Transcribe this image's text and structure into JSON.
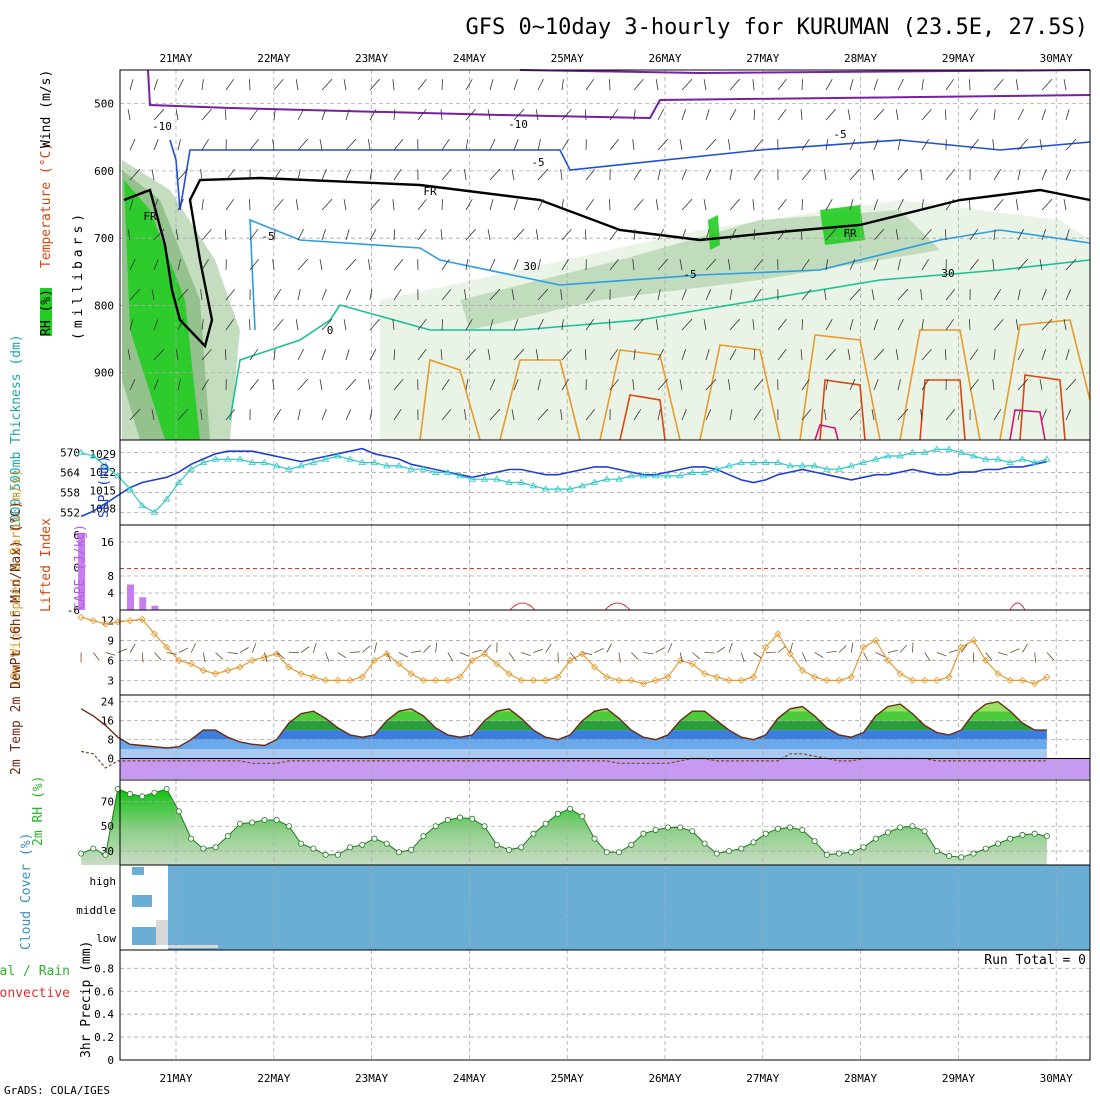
{
  "title": "GFS 0~10day 3-hourly for KURUMAN (23.5E, 27.5S)",
  "credit": "GrADS: COLA/IGES",
  "dates": [
    "21MAY",
    "22MAY",
    "23MAY",
    "24MAY",
    "25MAY",
    "26MAY",
    "27MAY",
    "28MAY",
    "29MAY",
    "30MAY"
  ],
  "colors": {
    "rh_light": "#e7f3e4",
    "rh_mid": "#bcd9b7",
    "rh_dark": "#8fbe88",
    "rh_green": "#22cc22",
    "temp_cold": "#7a1fa2",
    "temp_blue": "#1f4fd6",
    "temp_light_blue": "#2a9de6",
    "temp_teal": "#18c294",
    "temp_orange": "#e89a2a",
    "temp_red": "#d9460f",
    "temp_magenta": "#d4147a",
    "slp": "#1f3fd0",
    "thickness": "#2fc6c6",
    "cape": "#c77ff0",
    "wind": "#e59a2c",
    "t2m_line": "#6b2a13",
    "cloud": "#6aaed6",
    "rh2m": "#2bb52b"
  },
  "chart_data": [
    {
      "type": "heatmap",
      "panel": "upper-air",
      "ylabel_parts": [
        "RH (%)",
        "Temperature (°C)",
        "Wind (m/s)"
      ],
      "yaxis_title": "(millibars)",
      "yticks": [
        500,
        600,
        700,
        800,
        900
      ],
      "ylim": [
        1000,
        450
      ],
      "contour_labels": [
        "-10",
        "-10",
        "-5",
        "-5",
        "-5",
        "-5",
        "0",
        "FR",
        "FR",
        "FR",
        "30",
        "30"
      ]
    },
    {
      "type": "line",
      "panel": "slp-thickness",
      "ylabel_left": "1000-500mb Thickness (dm)",
      "ylabel_right": "SLP (mb)",
      "yticks_left": [
        552,
        558,
        564,
        570
      ],
      "yticks_right": [
        1008,
        1015,
        1022,
        1029
      ],
      "x": [
        0,
        3,
        6,
        9,
        12,
        15,
        18,
        21,
        24,
        27,
        30,
        33,
        36,
        39,
        42,
        45,
        48,
        51,
        54,
        57,
        60,
        63,
        66,
        69,
        72,
        75,
        78,
        81,
        84,
        87,
        90,
        93,
        96,
        99,
        102,
        105,
        108,
        111,
        114,
        117,
        120,
        123,
        126,
        129,
        132,
        135,
        138,
        141,
        144,
        147,
        150,
        153,
        156,
        159,
        162,
        165,
        168,
        171,
        174,
        177,
        180,
        183,
        186,
        189,
        192,
        195,
        198,
        201,
        204,
        207,
        210,
        213,
        216,
        219,
        222,
        225,
        228,
        231,
        234,
        237
      ],
      "series": [
        {
          "name": "SLP (mb)",
          "values": [
            1005,
            1007,
            1010,
            1013,
            1016,
            1018,
            1019,
            1020,
            1022,
            1025,
            1027,
            1029,
            1030,
            1030,
            1030,
            1029,
            1028,
            1027,
            1026,
            1027,
            1028,
            1029,
            1030,
            1031,
            1029,
            1028,
            1027,
            1025,
            1024,
            1023,
            1022,
            1021,
            1020,
            1021,
            1022,
            1023,
            1023,
            1022,
            1021,
            1021,
            1022,
            1023,
            1024,
            1024,
            1023,
            1022,
            1021,
            1021,
            1022,
            1023,
            1024,
            1024,
            1023,
            1021,
            1019,
            1018,
            1019,
            1021,
            1022,
            1023,
            1022,
            1021,
            1020,
            1019,
            1020,
            1021,
            1021,
            1022,
            1023,
            1022,
            1021,
            1021,
            1022,
            1022,
            1023,
            1023,
            1024,
            1024,
            1025,
            1026
          ]
        },
        {
          "name": "1000-500mb Thickness (dm)",
          "values": [
            570,
            569,
            566,
            563,
            559,
            554,
            552,
            556,
            561,
            565,
            567,
            568,
            568,
            568,
            567,
            567,
            566,
            565,
            566,
            567,
            568,
            569,
            568,
            567,
            567,
            566,
            566,
            565,
            565,
            564,
            564,
            563,
            562,
            562,
            562,
            561,
            561,
            560,
            559,
            559,
            559,
            560,
            561,
            562,
            562,
            563,
            563,
            563,
            563,
            563,
            564,
            564,
            565,
            566,
            567,
            567,
            567,
            567,
            566,
            566,
            566,
            565,
            565,
            566,
            567,
            568,
            569,
            569,
            570,
            570,
            571,
            571,
            570,
            569,
            568,
            568,
            567,
            568,
            567,
            568
          ]
        }
      ]
    },
    {
      "type": "bar",
      "panel": "instability",
      "ylabel_left": "Lifted Index",
      "ylabel_right": "CAPE (J/kg)",
      "yticks_li": [
        6,
        0,
        -6
      ],
      "yticks_cape": [
        16,
        8,
        4
      ],
      "x": [
        0,
        12,
        15,
        18
      ],
      "values": [
        18,
        6,
        3,
        1
      ]
    },
    {
      "type": "line",
      "panel": "wind10m",
      "ylabel": "10m Wind Speed & Barbs (m/s)",
      "yticks": [
        3,
        6,
        9,
        12
      ],
      "x": [
        0,
        3,
        6,
        9,
        12,
        15,
        18,
        21,
        24,
        27,
        30,
        33,
        36,
        39,
        42,
        45,
        48,
        51,
        54,
        57,
        60,
        63,
        66,
        69,
        72,
        75,
        78,
        81,
        84,
        87,
        90,
        93,
        96,
        99,
        102,
        105,
        108,
        111,
        114,
        117,
        120,
        123,
        126,
        129,
        132,
        135,
        138,
        141,
        144,
        147,
        150,
        153,
        156,
        159,
        162,
        165,
        168,
        171,
        174,
        177,
        180,
        183,
        186,
        189,
        192,
        195,
        198,
        201,
        204,
        207,
        210,
        213,
        216,
        219,
        222,
        225,
        228,
        231,
        234,
        237
      ],
      "values": [
        12.5,
        12,
        11.5,
        11.8,
        12,
        12.2,
        10,
        8,
        6,
        5.5,
        4.5,
        4,
        4.5,
        5,
        6,
        6.5,
        7,
        5,
        4,
        3.5,
        3,
        3,
        3,
        3.5,
        6,
        7,
        5.5,
        4,
        3,
        3,
        3,
        3.5,
        6,
        7,
        5.5,
        4,
        3,
        3,
        3,
        3.5,
        6,
        7,
        5,
        3.5,
        3,
        3,
        2.5,
        3,
        3.5,
        6,
        5.5,
        4,
        3.5,
        3,
        3,
        3.5,
        8,
        10,
        7,
        4.5,
        3.5,
        3,
        3,
        3.5,
        8,
        9,
        6,
        4,
        3,
        3,
        3,
        3.5,
        8,
        9,
        6,
        4,
        3,
        3,
        2.5,
        3.5
      ]
    },
    {
      "type": "area",
      "panel": "t2m",
      "ylabel": "2m Temp 2m DewPt (6hr Min/Max) (°C)",
      "yticks": [
        0,
        8,
        16,
        24
      ],
      "x": [
        0,
        3,
        6,
        9,
        12,
        15,
        18,
        21,
        24,
        27,
        30,
        33,
        36,
        39,
        42,
        45,
        48,
        51,
        54,
        57,
        60,
        63,
        66,
        69,
        72,
        75,
        78,
        81,
        84,
        87,
        90,
        93,
        96,
        99,
        102,
        105,
        108,
        111,
        114,
        117,
        120,
        123,
        126,
        129,
        132,
        135,
        138,
        141,
        144,
        147,
        150,
        153,
        156,
        159,
        162,
        165,
        168,
        171,
        174,
        177,
        180,
        183,
        186,
        189,
        192,
        195,
        198,
        201,
        204,
        207,
        210,
        213,
        216,
        219,
        222,
        225,
        228,
        231,
        234,
        237
      ],
      "series": [
        {
          "name": "2m Temp",
          "values": [
            21,
            18,
            14,
            9,
            6,
            5.5,
            5,
            4.5,
            5,
            8,
            12,
            12,
            9,
            7,
            6,
            5.5,
            8,
            15,
            19,
            20,
            17,
            13,
            10,
            9,
            10,
            16,
            20,
            21,
            18,
            13,
            10,
            9,
            10,
            16,
            20,
            21,
            17,
            12,
            9,
            8,
            10,
            16,
            20,
            21,
            17,
            12,
            9,
            8,
            10,
            16,
            20,
            20,
            16,
            12,
            9,
            8,
            10,
            17,
            21,
            22,
            18,
            13,
            10,
            9,
            11,
            18,
            22,
            23,
            19,
            14,
            11,
            10,
            12,
            19,
            23,
            24,
            20,
            15,
            12,
            12
          ]
        },
        {
          "name": "2m DewPt",
          "values": [
            3,
            2,
            -4,
            -1,
            -1,
            -1,
            -1,
            -1,
            -1,
            -1,
            -1,
            -1,
            -1,
            -1,
            -2,
            -2,
            -2,
            -1,
            -1,
            -1,
            -1,
            -1,
            -1,
            -1,
            -1,
            -1,
            -1,
            -1,
            -1,
            -1,
            -1,
            -1,
            -1,
            -1,
            -1,
            -1,
            -1,
            -1,
            -1,
            -1,
            -1,
            -1,
            -1,
            -1,
            -2,
            -2,
            -2,
            -2,
            -2,
            -1,
            0,
            0,
            -1,
            -1,
            -1,
            -1,
            -1,
            -1,
            2,
            2,
            1,
            0,
            -1,
            -1,
            0,
            0,
            0,
            0,
            0,
            0,
            -1,
            -1,
            -1,
            -1,
            -1,
            -1,
            -1,
            -1,
            -1,
            -1
          ]
        }
      ]
    },
    {
      "type": "area",
      "panel": "rh2m",
      "ylabel": "2m RH (%)",
      "yticks": [
        30,
        50,
        70
      ],
      "x": [
        0,
        3,
        6,
        9,
        12,
        15,
        18,
        21,
        24,
        27,
        30,
        33,
        36,
        39,
        42,
        45,
        48,
        51,
        54,
        57,
        60,
        63,
        66,
        69,
        72,
        75,
        78,
        81,
        84,
        87,
        90,
        93,
        96,
        99,
        102,
        105,
        108,
        111,
        114,
        117,
        120,
        123,
        126,
        129,
        132,
        135,
        138,
        141,
        144,
        147,
        150,
        153,
        156,
        159,
        162,
        165,
        168,
        171,
        174,
        177,
        180,
        183,
        186,
        189,
        192,
        195,
        198,
        201,
        204,
        207,
        210,
        213,
        216,
        219,
        222,
        225,
        228,
        231,
        234,
        237
      ],
      "values": [
        28,
        32,
        27,
        80,
        76,
        74,
        77,
        80,
        62,
        40,
        32,
        33,
        42,
        52,
        53,
        55,
        55,
        50,
        36,
        32,
        27,
        27,
        33,
        35,
        40,
        36,
        29,
        31,
        42,
        50,
        55,
        57,
        56,
        50,
        35,
        31,
        33,
        44,
        52,
        60,
        64,
        58,
        40,
        29,
        29,
        35,
        44,
        47,
        49,
        49,
        46,
        36,
        28,
        30,
        32,
        37,
        44,
        48,
        49,
        47,
        38,
        27,
        28,
        29,
        33,
        40,
        45,
        49,
        50,
        46,
        30,
        26,
        25,
        28,
        32,
        36,
        40,
        43,
        44,
        42
      ]
    },
    {
      "type": "heatmap",
      "panel": "cloud",
      "ylabel": "Cloud Cover (%)",
      "levels": [
        "high",
        "middle",
        "low"
      ]
    },
    {
      "type": "bar",
      "panel": "precip",
      "ylabel": "3hr Precip (mm)",
      "legend_left": [
        "Total / Rain",
        "Convective"
      ],
      "yticks": [
        0,
        0.2,
        0.4,
        0.6,
        0.8
      ],
      "run_total": "Run Total = 0",
      "values": []
    }
  ]
}
